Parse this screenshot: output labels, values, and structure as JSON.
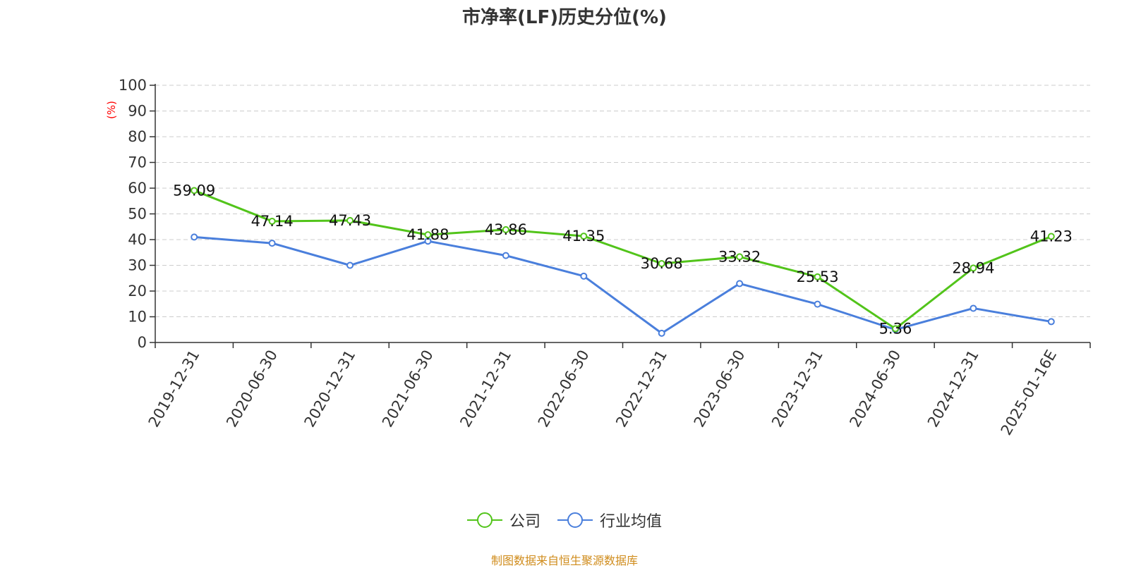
{
  "chart_data": {
    "type": "line",
    "title": "市净率(LF)历史分位(%)",
    "ylabel": "(%)",
    "xlabel": "",
    "ylim": [
      0,
      100
    ],
    "yticks": [
      0,
      10,
      20,
      30,
      40,
      50,
      60,
      70,
      80,
      90,
      100
    ],
    "grid": true,
    "legend_position": "bottom",
    "categories": [
      "2019-12-31",
      "2020-06-30",
      "2020-12-31",
      "2021-06-30",
      "2021-12-31",
      "2022-06-30",
      "2022-12-31",
      "2023-06-30",
      "2023-12-31",
      "2024-06-30",
      "2024-12-31",
      "2025-01-16E"
    ],
    "series": [
      {
        "name": "公司",
        "color": "#52c41a",
        "show_labels": true,
        "values": [
          59.09,
          47.14,
          47.43,
          41.88,
          43.86,
          41.35,
          30.68,
          33.32,
          25.53,
          5.36,
          28.94,
          41.23
        ]
      },
      {
        "name": "行业均值",
        "color": "#4a7fdc",
        "show_labels": false,
        "values": [
          41.0,
          38.6,
          30.0,
          39.4,
          33.8,
          25.8,
          3.6,
          22.9,
          14.9,
          5.0,
          13.3,
          8.1
        ]
      }
    ]
  },
  "source": "制图数据来自恒生聚源数据库",
  "ylabel_color": "#ff0000",
  "axis_color": "#333333",
  "grid_color": "#cccccc",
  "text_color": "#333333"
}
